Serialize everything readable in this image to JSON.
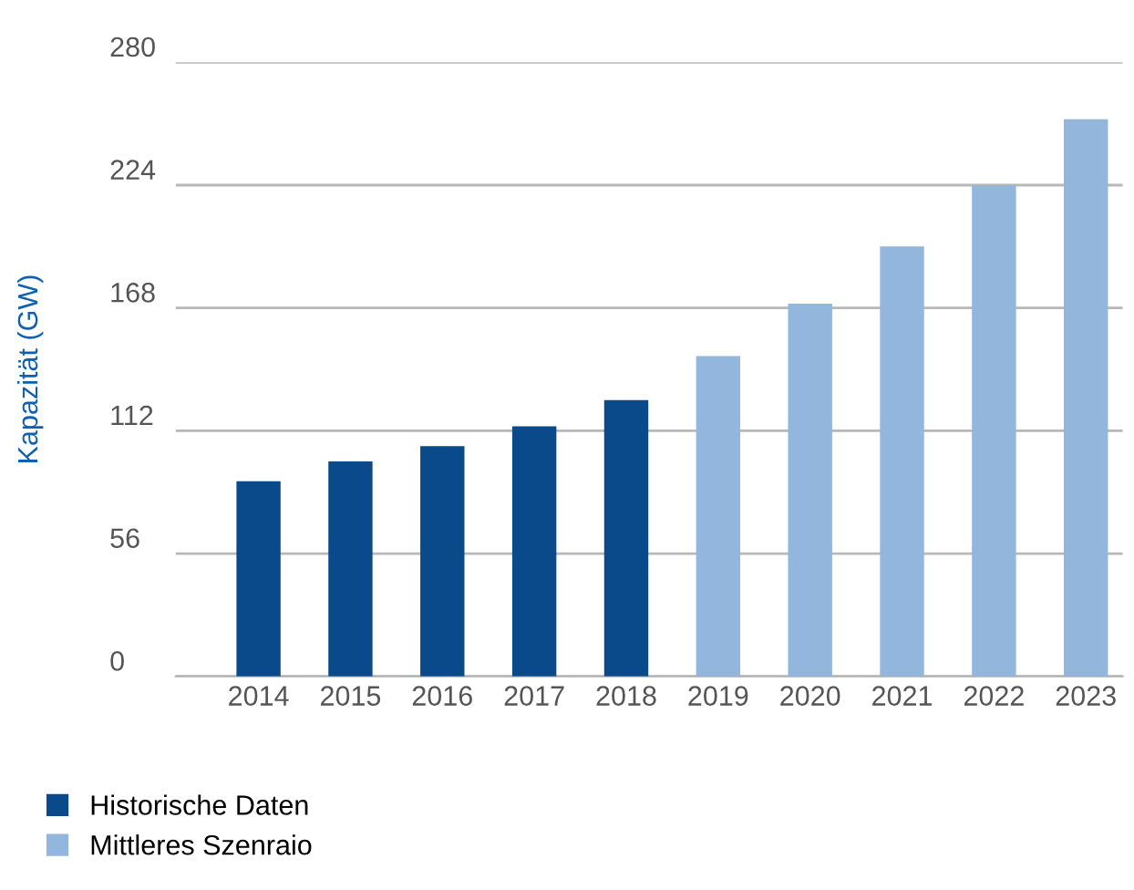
{
  "chart_data": {
    "type": "bar",
    "ylabel": "Kapazität (GW)",
    "categories": [
      "2014",
      "2015",
      "2016",
      "2017",
      "2018",
      "2019",
      "2020",
      "2021",
      "2022",
      "2023"
    ],
    "series": [
      {
        "name": "Historische Daten",
        "color": "#0a4a8a",
        "values": [
          89,
          98,
          105,
          114,
          126,
          null,
          null,
          null,
          null,
          null
        ]
      },
      {
        "name": "Mittleres Szenraio",
        "color": "#92b6dc",
        "values": [
          null,
          null,
          null,
          null,
          null,
          146,
          170,
          196,
          224,
          254
        ]
      }
    ],
    "ylim": [
      0,
      280
    ],
    "yticks": [
      0,
      56,
      112,
      168,
      224,
      280
    ],
    "grid": "y",
    "legend": "bottom left"
  }
}
